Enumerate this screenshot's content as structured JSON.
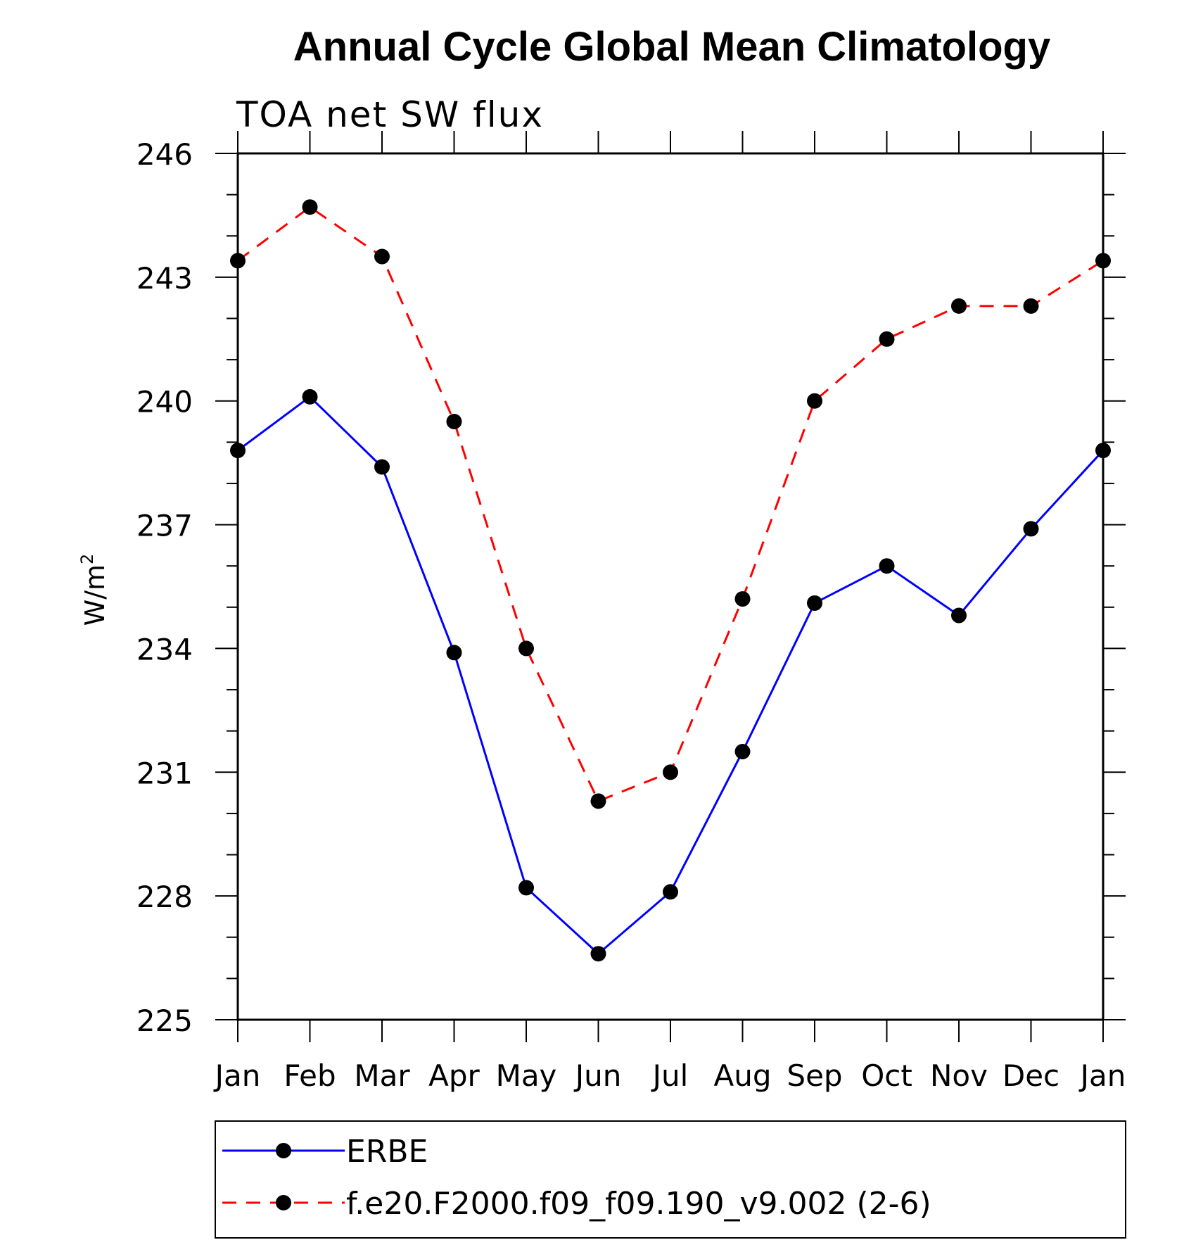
{
  "chart_data": {
    "type": "line",
    "title": "Annual Cycle Global Mean Climatology",
    "subtitle": "TOA net SW flux",
    "ylabel": "W/m",
    "ylabel_superscript": "2",
    "xlabel": "",
    "categories": [
      "Jan",
      "Feb",
      "Mar",
      "Apr",
      "May",
      "Jun",
      "Jul",
      "Aug",
      "Sep",
      "Oct",
      "Nov",
      "Dec",
      "Jan"
    ],
    "ylim": [
      225,
      246
    ],
    "yticks": [
      "225",
      "228",
      "231",
      "234",
      "237",
      "240",
      "243",
      "246"
    ],
    "grid": false,
    "legend_position": "bottom",
    "series": [
      {
        "name": "ERBE",
        "color": "#0000ff",
        "line_style": "solid",
        "marker": "filled-circle",
        "values": [
          238.8,
          240.1,
          238.4,
          233.9,
          228.2,
          226.6,
          228.1,
          231.5,
          235.1,
          236.0,
          234.8,
          236.9,
          238.8
        ]
      },
      {
        "name": "f.e20.F2000.f09_f09.190_v9.002 (2-6)",
        "color": "#ff0000",
        "line_style": "dashed",
        "marker": "filled-circle",
        "values": [
          243.4,
          244.7,
          243.5,
          239.5,
          234.0,
          230.3,
          231.0,
          235.2,
          240.0,
          241.5,
          242.3,
          242.3,
          243.4
        ]
      }
    ]
  }
}
